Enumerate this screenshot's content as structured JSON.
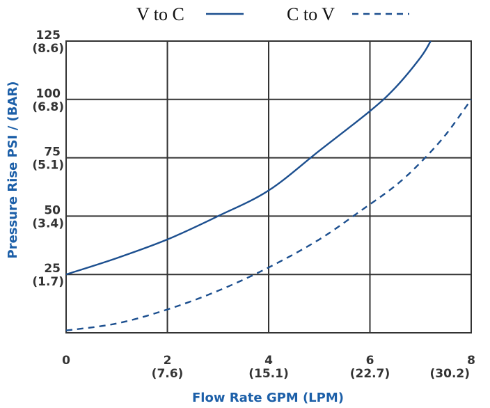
{
  "chart_data": {
    "type": "line",
    "title": "",
    "xlabel": "Flow Rate GPM (LPM)",
    "ylabel": "Pressure Rise PSI / (BAR)",
    "xlim": [
      0,
      8
    ],
    "ylim": [
      0,
      125
    ],
    "grid": true,
    "legend_position": "top",
    "x_ticks": [
      {
        "value": 0,
        "line1": "0",
        "line2": ""
      },
      {
        "value": 2,
        "line1": "2",
        "line2": "(7.6)"
      },
      {
        "value": 4,
        "line1": "4",
        "line2": "(15.1)"
      },
      {
        "value": 6,
        "line1": "6",
        "line2": "(22.7)"
      },
      {
        "value": 8,
        "line1": "8",
        "line2": "(30.2)"
      }
    ],
    "y_ticks": [
      {
        "value": 25,
        "line1": "25",
        "line2": "(1.7)"
      },
      {
        "value": 50,
        "line1": "50",
        "line2": "(3.4)"
      },
      {
        "value": 75,
        "line1": "75",
        "line2": "(5.1)"
      },
      {
        "value": 100,
        "line1": "100",
        "line2": "(6.8)"
      },
      {
        "value": 125,
        "line1": "125",
        "line2": "(8.6)"
      }
    ],
    "series": [
      {
        "name": "V to C",
        "style": "solid",
        "x": [
          0,
          1,
          2,
          3,
          4,
          5,
          6,
          6.5,
          7,
          7.2
        ],
        "y": [
          25,
          32,
          40,
          50,
          61,
          78,
          95,
          105,
          118,
          125
        ]
      },
      {
        "name": "C to V",
        "style": "dashed",
        "x": [
          0,
          1,
          2,
          3,
          4,
          5,
          5.8,
          6.5,
          7,
          7.5,
          8
        ],
        "y": [
          1,
          4,
          10,
          18,
          28,
          40,
          52,
          63,
          73,
          85,
          100
        ]
      }
    ]
  },
  "colors": {
    "series": "#1c4f8f",
    "axis_title": "#1c5fa8",
    "grid": "#333333",
    "tick_text": "#333333"
  }
}
